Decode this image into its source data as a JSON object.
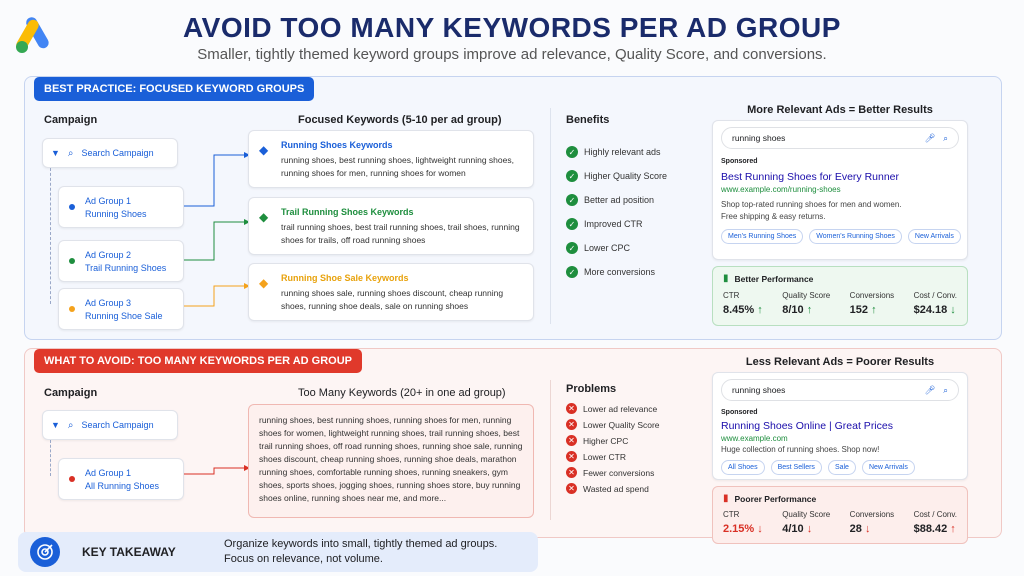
{
  "header": {
    "title": "AVOID TOO MANY KEYWORDS PER AD GROUP",
    "subtitle": "Smaller, tightly themed keyword groups improve ad relevance, Quality Score, and conversions."
  },
  "good": {
    "tag": "BEST PRACTICE: FOCUSED KEYWORD GROUPS",
    "campaign_heading": "Campaign",
    "campaign": "Search Campaign",
    "groups": [
      {
        "label": "Ad Group 1",
        "name": "Running Shoes",
        "color": "#1a5fd8"
      },
      {
        "label": "Ad Group 2",
        "name": "Trail Running Shoes",
        "color": "#1e8e3e"
      },
      {
        "label": "Ad Group 3",
        "name": "Running Shoe Sale",
        "color": "#f4a21c"
      }
    ],
    "kw_heading": "Focused Keywords (5-10 per ad group)",
    "kw": [
      {
        "title": "Running Shoes Keywords",
        "text": "running shoes, best running shoes, lightweight running shoes, running shoes for men, running shoes for women",
        "color": "#1a5fd8"
      },
      {
        "title": "Trail Running Shoes Keywords",
        "text": "trail running shoes, best trail running shoes, trail shoes, running shoes for trails, off road running shoes",
        "color": "#1e8e3e"
      },
      {
        "title": "Running Shoe Sale Keywords",
        "text": "running shoes sale, running shoes discount, cheap running shoes, running shoe deals, sale on running shoes",
        "color": "#e8a20c"
      }
    ],
    "benefits_heading": "Benefits",
    "benefits": [
      "Highly relevant ads",
      "Higher Quality Score",
      "Better ad position",
      "Improved CTR",
      "Lower CPC",
      "More conversions"
    ],
    "ad_heading": "More Relevant Ads = Better Results",
    "search": "running shoes",
    "sponsored": "Sponsored",
    "ad_title": "Best Running Shoes for Every Runner",
    "ad_url": "www.example.com/running-shoes",
    "ad_desc1": "Shop top-rated running shoes for men and women.",
    "ad_desc2": "Free shipping & easy returns.",
    "pills": [
      "Men's Running Shoes",
      "Women's Running Shoes",
      "New Arrivals"
    ],
    "perf_heading": "Better Performance",
    "metrics": [
      {
        "label": "CTR",
        "value": "8.45%",
        "arrow": "↑",
        "color": "#1e8e3e"
      },
      {
        "label": "Quality Score",
        "value": "8/10",
        "arrow": "↑",
        "color": "#1e8e3e"
      },
      {
        "label": "Conversions",
        "value": "152",
        "arrow": "↑",
        "color": "#1e8e3e"
      },
      {
        "label": "Cost / Conv.",
        "value": "$24.18",
        "arrow": "↓",
        "color": "#1e8e3e"
      }
    ]
  },
  "bad": {
    "tag": "WHAT TO AVOID: TOO MANY KEYWORDS PER AD GROUP",
    "campaign_heading": "Campaign",
    "campaign": "Search Campaign",
    "group_label": "Ad Group 1",
    "group_name": "All Running Shoes",
    "kw_heading": "Too Many Keywords (20+ in one ad group)",
    "kw_text": "running shoes, best running shoes, running shoes for men, running shoes for women, lightweight running shoes, trail running shoes, best trail running shoes, off road running shoes, running shoe sale, running shoes discount, cheap running shoes, running shoe deals, marathon running shoes, comfortable running shoes, running sneakers, gym shoes, sports shoes, jogging shoes, running shoes store, buy running shoes online, running shoes near me, and more...",
    "problems_heading": "Problems",
    "problems": [
      "Lower ad relevance",
      "Lower Quality Score",
      "Higher CPC",
      "Lower CTR",
      "Fewer conversions",
      "Wasted ad spend"
    ],
    "ad_heading": "Less Relevant Ads = Poorer Results",
    "search": "running shoes",
    "sponsored": "Sponsored",
    "ad_title": "Running Shoes Online | Great Prices",
    "ad_url": "www.example.com",
    "ad_desc": "Huge collection of running shoes. Shop now!",
    "pills": [
      "All Shoes",
      "Best Sellers",
      "Sale",
      "New Arrivals"
    ],
    "perf_heading": "Poorer Performance",
    "metrics": [
      {
        "label": "CTR",
        "value": "2.15%",
        "arrow": "↓",
        "color": "#d93025"
      },
      {
        "label": "Quality Score",
        "value": "4/10",
        "arrow": "↓",
        "color": "#d93025"
      },
      {
        "label": "Conversions",
        "value": "28",
        "arrow": "↓",
        "color": "#d93025"
      },
      {
        "label": "Cost / Conv.",
        "value": "$88.42",
        "arrow": "↑",
        "color": "#d93025"
      }
    ]
  },
  "takeaway": {
    "label": "KEY TAKEAWAY",
    "line1": "Organize keywords into small, tightly themed ad groups.",
    "line2": "Focus on relevance, not volume."
  }
}
